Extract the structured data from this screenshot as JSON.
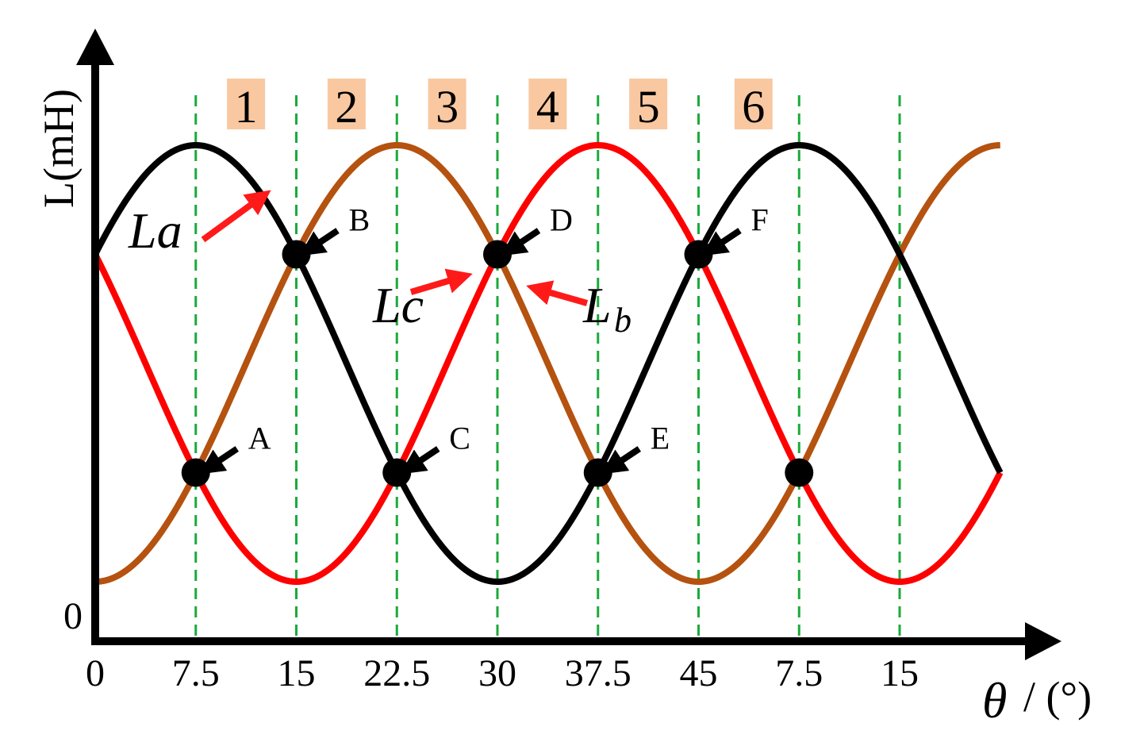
{
  "chart_data": {
    "type": "line",
    "y_axis_label": "L(mH)",
    "y_origin_label": "0",
    "x_axis_label_symbol": "θ",
    "x_axis_label_unit": "/ (°)",
    "x_tick_labels": [
      "0",
      "7.5",
      "15",
      "22.5",
      "30",
      "37.5",
      "45",
      "7.5",
      "15"
    ],
    "region_labels": [
      "1",
      "2",
      "3",
      "4",
      "5",
      "6"
    ],
    "series": [
      {
        "name": "La",
        "color": "#000000",
        "phase_deg": 7.5
      },
      {
        "name": "Lb",
        "color": "#b5520f",
        "phase_deg": 22.5
      },
      {
        "name": "Lc",
        "color": "#ff0000",
        "phase_deg": 37.5
      }
    ],
    "period_deg": 45,
    "x_range_deg": [
      0,
      67.5
    ],
    "curve_labels": [
      {
        "series": "La",
        "text": "La",
        "sub": ""
      },
      {
        "series": "Lc",
        "text": "Lc",
        "sub": ""
      },
      {
        "series": "Lb",
        "text": "L",
        "sub": "b"
      }
    ],
    "intersection_points": [
      {
        "label": "A",
        "x_deg": 7.5,
        "level": "low"
      },
      {
        "label": "B",
        "x_deg": 15,
        "level": "high"
      },
      {
        "label": "C",
        "x_deg": 22.5,
        "level": "low"
      },
      {
        "label": "D",
        "x_deg": 30,
        "level": "high"
      },
      {
        "label": "E",
        "x_deg": 37.5,
        "level": "low"
      },
      {
        "label": "F",
        "x_deg": 45,
        "level": "high"
      },
      {
        "label": "",
        "x_deg": 52.5,
        "level": "low"
      }
    ],
    "grid": "green dashed vertical lines at tick positions",
    "colors": {
      "axis": "#000000",
      "grid": "#1aaa3a",
      "region_bg": "#f9c8a0",
      "arrow_black": "#000000",
      "arrow_red": "#ff1a1a"
    }
  }
}
